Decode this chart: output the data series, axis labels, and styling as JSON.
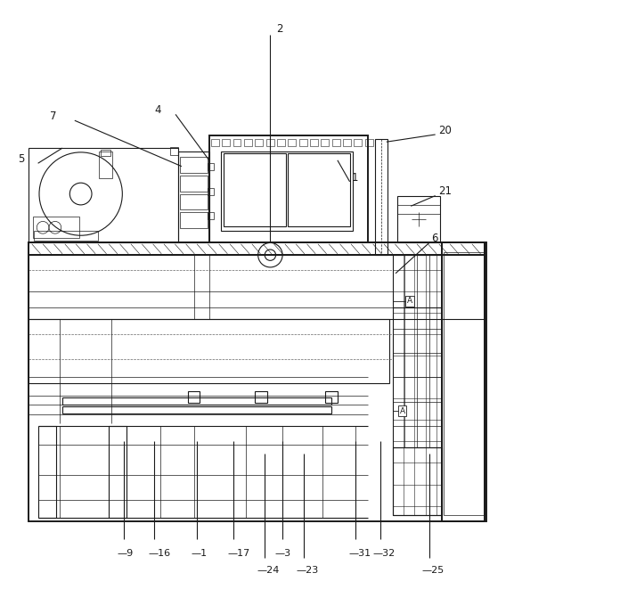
{
  "bg_color": "#ffffff",
  "lc": "#1a1a1a",
  "lw": 0.8,
  "tlw": 0.5,
  "thw": 1.4,
  "fig_w": 6.96,
  "fig_h": 6.89,
  "dpi": 100,
  "top_leaders": [
    {
      "label": "2",
      "line": [
        [
          0.435,
          0.395
        ],
        [
          0.435,
          0.055
        ]
      ],
      "text": [
        0.445,
        0.045
      ]
    },
    {
      "label": "4",
      "line": [
        [
          0.335,
          0.26
        ],
        [
          0.28,
          0.185
        ]
      ],
      "text": [
        0.245,
        0.178
      ]
    },
    {
      "label": "7",
      "line": [
        [
          0.29,
          0.27
        ],
        [
          0.115,
          0.195
        ]
      ],
      "text": [
        0.075,
        0.188
      ]
    },
    {
      "label": "5",
      "line": [
        [
          0.095,
          0.24
        ],
        [
          0.055,
          0.265
        ]
      ],
      "text": [
        0.022,
        0.258
      ]
    },
    {
      "label": "20",
      "line": [
        [
          0.625,
          0.23
        ],
        [
          0.705,
          0.218
        ]
      ],
      "text": [
        0.71,
        0.211
      ]
    },
    {
      "label": "21",
      "line": [
        [
          0.665,
          0.335
        ],
        [
          0.705,
          0.318
        ]
      ],
      "text": [
        0.71,
        0.311
      ]
    },
    {
      "label": "1",
      "line": [
        [
          0.545,
          0.26
        ],
        [
          0.565,
          0.295
        ]
      ],
      "text": [
        0.568,
        0.288
      ]
    },
    {
      "label": "6",
      "line": [
        [
          0.64,
          0.445
        ],
        [
          0.695,
          0.395
        ]
      ],
      "text": [
        0.698,
        0.388
      ]
    }
  ],
  "bot_leaders": [
    {
      "label": "9",
      "line": [
        [
          0.195,
          0.72
        ],
        [
          0.195,
          0.88
        ]
      ],
      "text": [
        0.185,
        0.895
      ]
    },
    {
      "label": "16",
      "line": [
        [
          0.245,
          0.72
        ],
        [
          0.245,
          0.88
        ]
      ],
      "text": [
        0.235,
        0.895
      ]
    },
    {
      "label": "1",
      "line": [
        [
          0.315,
          0.72
        ],
        [
          0.315,
          0.88
        ]
      ],
      "text": [
        0.305,
        0.895
      ]
    },
    {
      "label": "17",
      "line": [
        [
          0.375,
          0.72
        ],
        [
          0.375,
          0.88
        ]
      ],
      "text": [
        0.365,
        0.895
      ]
    },
    {
      "label": "3",
      "line": [
        [
          0.455,
          0.72
        ],
        [
          0.455,
          0.88
        ]
      ],
      "text": [
        0.443,
        0.895
      ]
    },
    {
      "label": "24",
      "line": [
        [
          0.425,
          0.74
        ],
        [
          0.425,
          0.91
        ]
      ],
      "text": [
        0.413,
        0.924
      ]
    },
    {
      "label": "23",
      "line": [
        [
          0.49,
          0.74
        ],
        [
          0.49,
          0.91
        ]
      ],
      "text": [
        0.478,
        0.924
      ]
    },
    {
      "label": "31",
      "line": [
        [
          0.575,
          0.72
        ],
        [
          0.575,
          0.88
        ]
      ],
      "text": [
        0.563,
        0.895
      ]
    },
    {
      "label": "32",
      "line": [
        [
          0.615,
          0.72
        ],
        [
          0.615,
          0.88
        ]
      ],
      "text": [
        0.603,
        0.895
      ]
    },
    {
      "label": "25",
      "line": [
        [
          0.695,
          0.74
        ],
        [
          0.695,
          0.91
        ]
      ],
      "text": [
        0.683,
        0.924
      ]
    }
  ]
}
